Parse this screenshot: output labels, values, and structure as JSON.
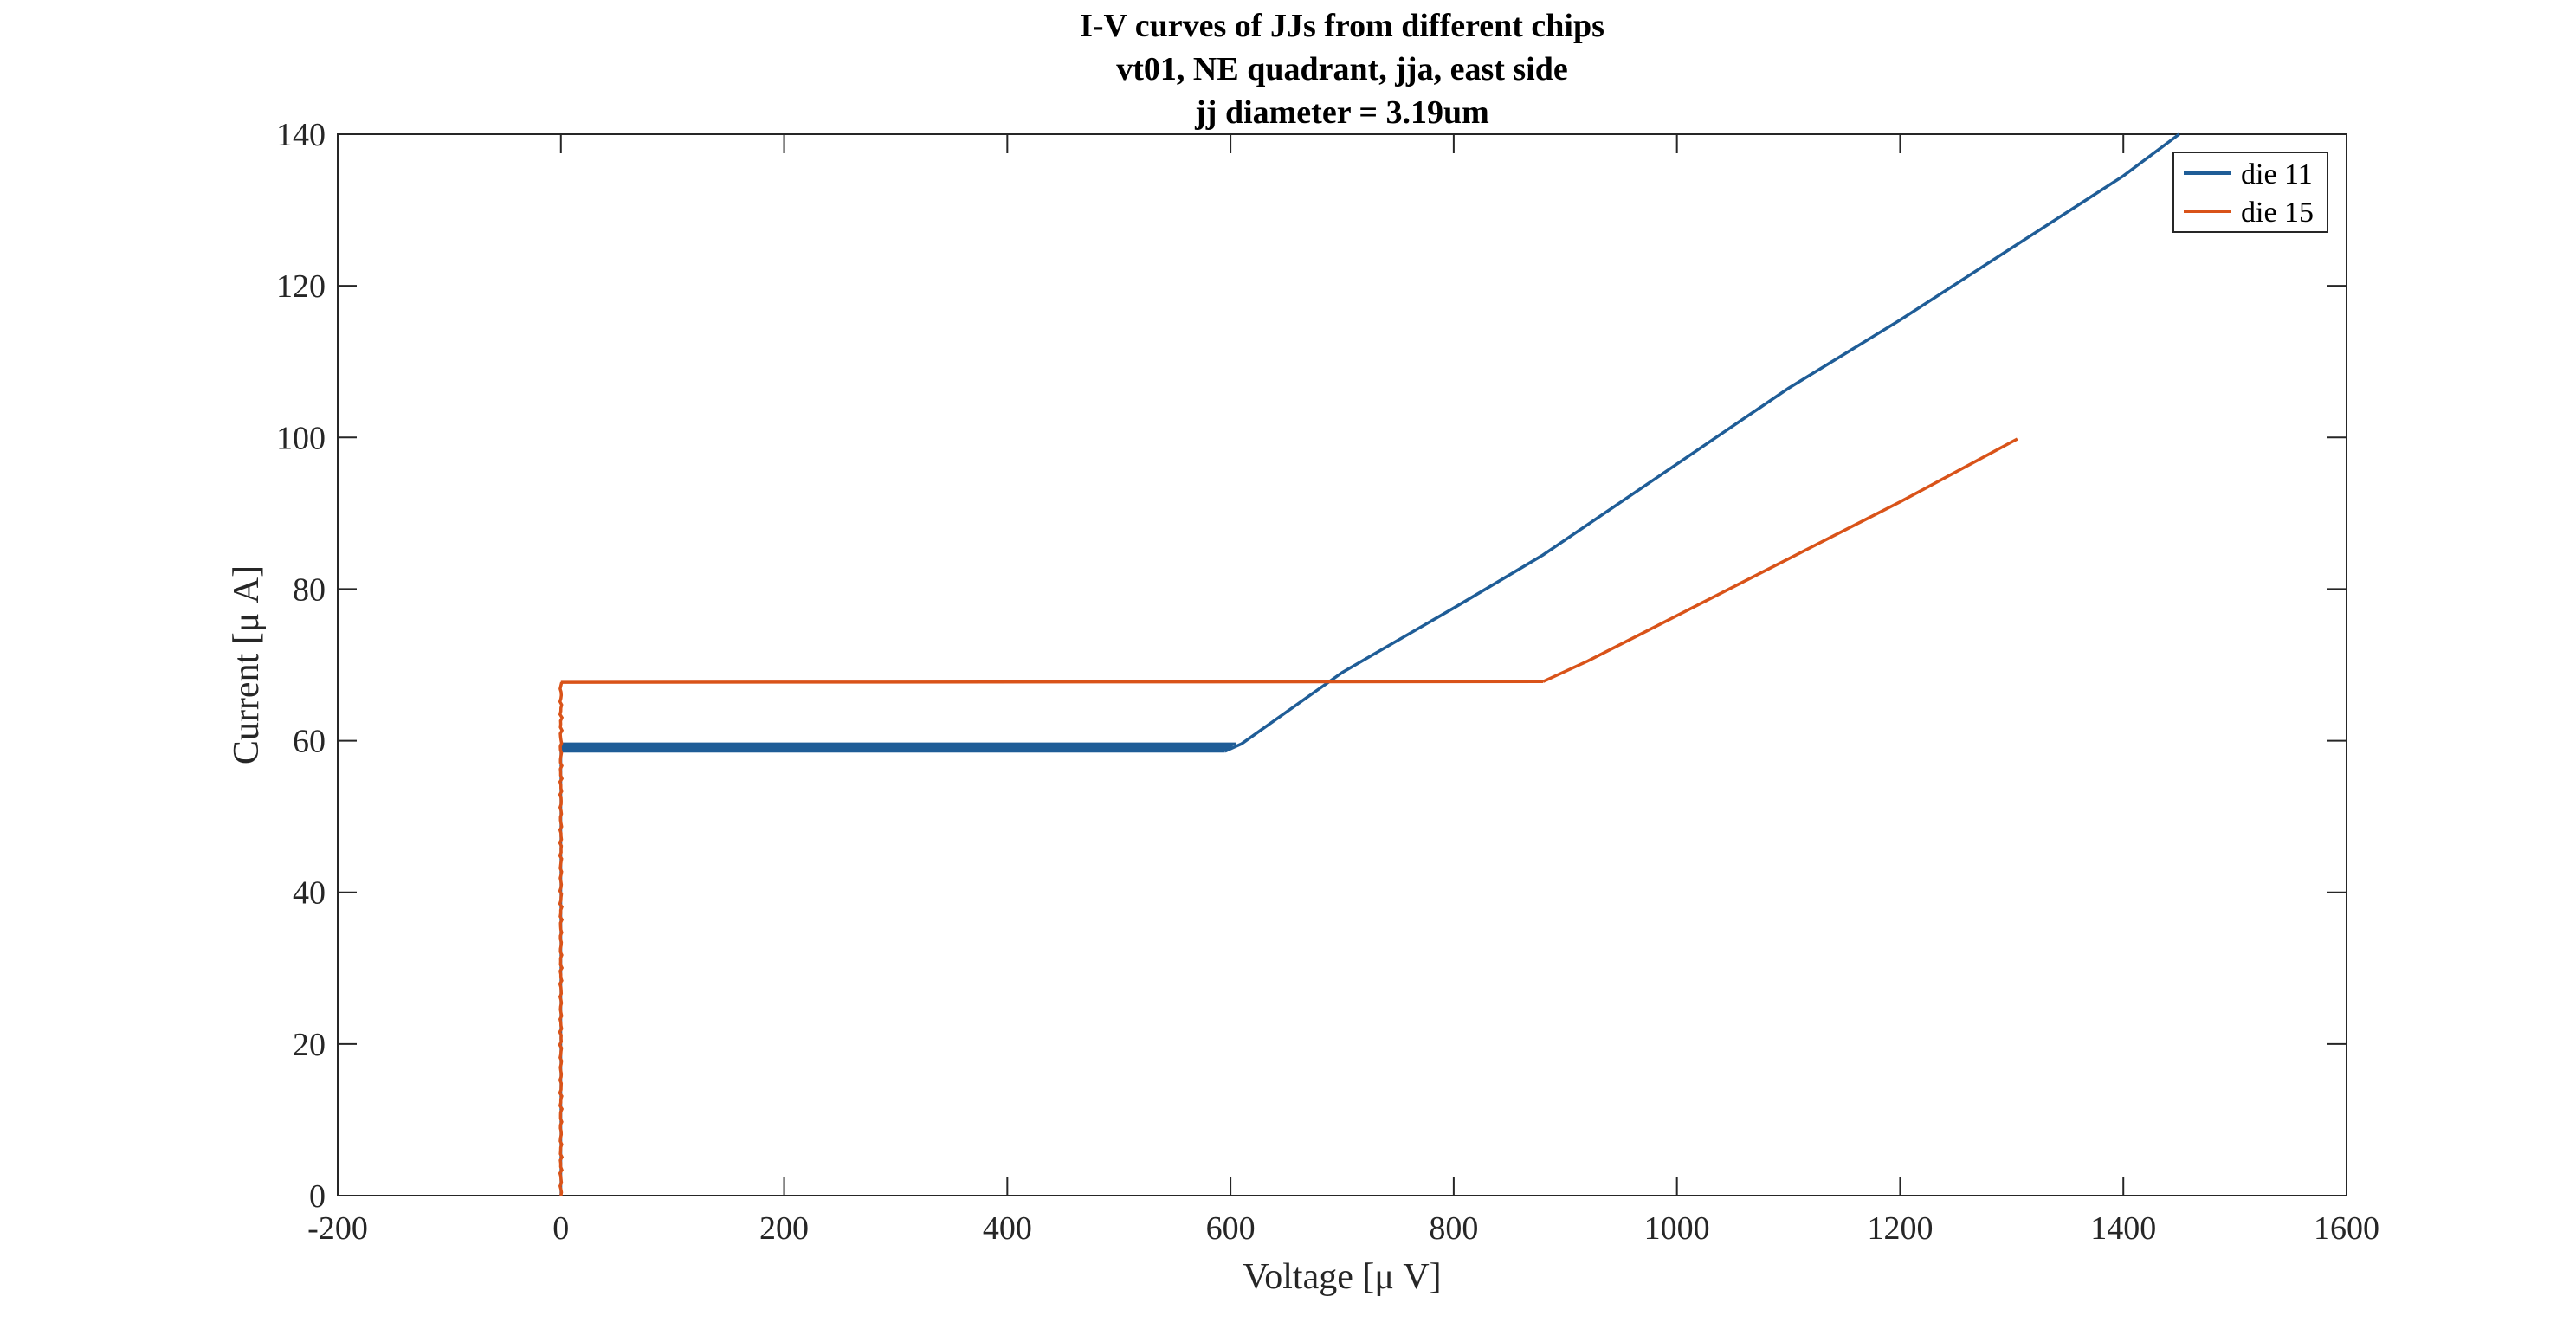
{
  "chart_data": {
    "type": "line",
    "title": [
      "I-V curves of JJs from different chips",
      "vt01, NE quadrant, jja, east side",
      "jj diameter = 3.19um"
    ],
    "xlabel": "Voltage [μ V]",
    "ylabel": "Current [μ A]",
    "xlim": [
      -200,
      1600
    ],
    "ylim": [
      0,
      140
    ],
    "xticks": [
      "-200",
      "0",
      "200",
      "400",
      "600",
      "800",
      "1000",
      "1200",
      "1400",
      "1600"
    ],
    "yticks": [
      "0",
      "20",
      "40",
      "60",
      "80",
      "100",
      "120",
      "140"
    ],
    "xtick_values": [
      -200,
      0,
      200,
      400,
      600,
      800,
      1000,
      1200,
      1400,
      1600
    ],
    "ytick_values": [
      0,
      20,
      40,
      60,
      80,
      100,
      120,
      140
    ],
    "grid": false,
    "legend_position": "top-right",
    "series": [
      {
        "name": "die 11",
        "color": "#1f5d97",
        "supercurrent_branch": [
          [
            0,
            0
          ],
          [
            0,
            58.7
          ],
          [
            0,
            59.6
          ]
        ],
        "plateau_upper": [
          [
            0,
            59.6
          ],
          [
            605,
            59.6
          ]
        ],
        "plateau_lower": [
          [
            0,
            58.6
          ],
          [
            595,
            58.6
          ]
        ],
        "resistive_branch": [
          [
            595,
            58.6
          ],
          [
            610,
            59.6
          ],
          [
            700,
            69
          ],
          [
            800,
            77.5
          ],
          [
            880,
            84.5
          ],
          [
            1000,
            96.5
          ],
          [
            1100,
            106.5
          ],
          [
            1200,
            115.5
          ],
          [
            1300,
            125
          ],
          [
            1400,
            134.5
          ],
          [
            1450,
            140
          ]
        ]
      },
      {
        "name": "die 15",
        "color": "#d95319",
        "supercurrent_branch": [
          [
            0,
            0
          ],
          [
            0,
            67.7
          ]
        ],
        "plateau": [
          [
            0,
            67.7
          ],
          [
            880,
            67.8
          ]
        ],
        "resistive_branch": [
          [
            880,
            67.8
          ],
          [
            920,
            70.5
          ],
          [
            1000,
            76.5
          ],
          [
            1100,
            84
          ],
          [
            1200,
            91.5
          ],
          [
            1305,
            99.8
          ]
        ]
      }
    ]
  }
}
